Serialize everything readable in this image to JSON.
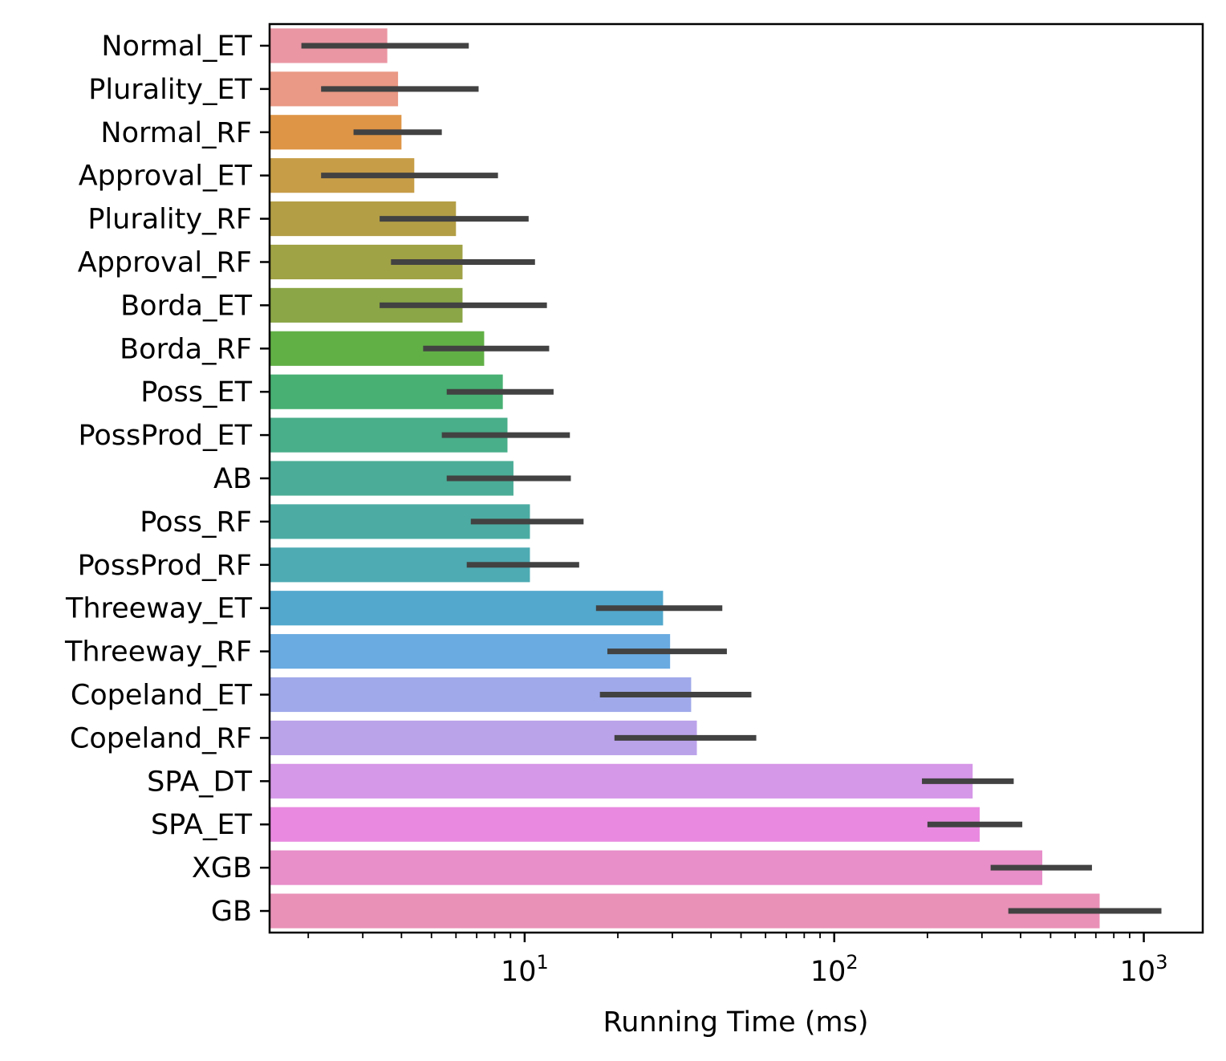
{
  "chart_data": {
    "type": "bar",
    "orientation": "horizontal",
    "xlabel": "Running Time (ms)",
    "ylabel": "",
    "xscale": "log",
    "xlim": [
      1.5,
      1550
    ],
    "xticks": [
      {
        "base": "10",
        "exp": "1",
        "value": 10
      },
      {
        "base": "10",
        "exp": "2",
        "value": 100
      },
      {
        "base": "10",
        "exp": "3",
        "value": 1000
      }
    ],
    "grid": false,
    "legend": "none",
    "error_bars": true,
    "categories": [
      "Normal_ET",
      "Plurality_ET",
      "Normal_RF",
      "Approval_ET",
      "Plurality_RF",
      "Approval_RF",
      "Borda_ET",
      "Borda_RF",
      "Poss_ET",
      "PossProd_ET",
      "AB",
      "Poss_RF",
      "PossProd_RF",
      "Threeway_ET",
      "Threeway_RF",
      "Copeland_ET",
      "Copeland_RF",
      "SPA_DT",
      "SPA_ET",
      "XGB",
      "GB"
    ],
    "values": [
      3.6,
      3.9,
      4.0,
      4.4,
      6.0,
      6.3,
      6.3,
      7.4,
      8.5,
      8.8,
      9.2,
      10.4,
      10.4,
      28.0,
      29.5,
      34.5,
      36.0,
      280,
      295,
      470,
      720
    ],
    "err_low": [
      1.9,
      2.2,
      2.8,
      2.2,
      3.4,
      3.7,
      3.4,
      4.7,
      5.6,
      5.4,
      5.6,
      6.7,
      6.5,
      17.0,
      18.5,
      17.5,
      19.5,
      192,
      200,
      320,
      365
    ],
    "err_high": [
      6.6,
      7.1,
      5.4,
      8.2,
      10.3,
      10.8,
      11.8,
      12.0,
      12.4,
      14.0,
      14.1,
      15.5,
      15.0,
      43.5,
      45.0,
      54.0,
      56.0,
      380,
      405,
      680,
      1140
    ],
    "colors": [
      "#ea96a3",
      "#e99985",
      "#de9546",
      "#c79d47",
      "#b39e46",
      "#a0a246",
      "#8aa646",
      "#61b046",
      "#47b072",
      "#49ae8a",
      "#4bad97",
      "#4caca3",
      "#4eabb3",
      "#52a8cd",
      "#6aabe1",
      "#a0a9ea",
      "#bba3ea",
      "#d597e7",
      "#e98ae0",
      "#e88ec9",
      "#e991b7"
    ],
    "error_bar_color": "#424242"
  }
}
